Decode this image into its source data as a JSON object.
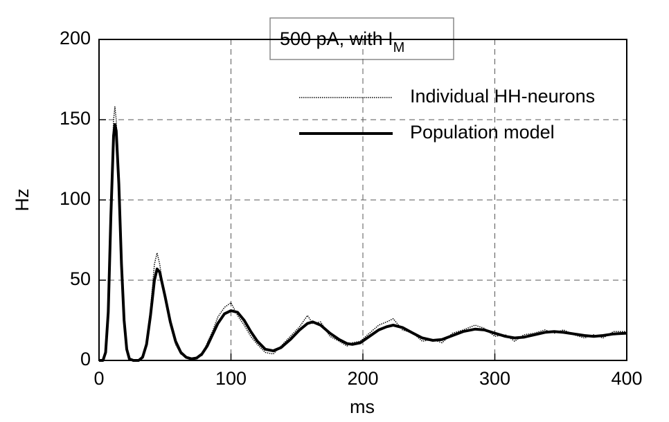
{
  "chart_data": {
    "type": "line",
    "title": {
      "text": "500 pA, with I",
      "subscript": "M"
    },
    "xlabel": "ms",
    "ylabel": "Hz",
    "x": [
      0,
      3,
      5,
      7,
      9,
      11,
      12,
      13,
      15,
      17,
      19,
      21,
      23,
      26,
      30,
      33,
      36,
      39,
      42,
      44,
      46,
      50,
      54,
      58,
      62,
      66,
      70,
      74,
      78,
      82,
      86,
      90,
      95,
      100,
      105,
      110,
      115,
      120,
      126,
      132,
      138,
      145,
      152,
      158,
      162,
      168,
      175,
      182,
      188,
      192,
      198,
      205,
      212,
      218,
      223,
      230,
      238,
      245,
      253,
      260,
      268,
      276,
      285,
      292,
      300,
      308,
      315,
      322,
      330,
      338,
      345,
      352,
      360,
      368,
      375,
      382,
      390,
      400
    ],
    "series": [
      {
        "name": "Individual HH-neurons",
        "color": "#000000",
        "style": "dotted",
        "values": [
          0,
          0,
          6,
          35,
          100,
          150,
          158,
          150,
          112,
          58,
          22,
          5,
          1,
          0,
          0,
          3,
          12,
          32,
          60,
          67,
          60,
          38,
          22,
          10,
          4,
          2,
          1,
          2,
          3,
          11,
          18,
          27,
          33,
          36,
          28,
          22,
          15,
          10,
          5,
          4,
          9,
          15,
          21,
          28,
          23,
          24,
          15,
          12,
          9,
          11,
          12,
          17,
          22,
          24,
          26,
          19,
          17,
          12,
          13,
          11,
          17,
          19,
          22,
          20,
          15,
          16,
          12,
          16,
          17,
          19,
          17,
          19,
          16,
          14,
          16,
          14,
          18,
          18
        ]
      },
      {
        "name": "Population model",
        "color": "#000000",
        "style": "solid",
        "values": [
          0,
          0,
          5,
          30,
          90,
          140,
          147,
          143,
          110,
          60,
          25,
          7,
          1,
          0,
          0,
          2,
          10,
          28,
          50,
          57,
          55,
          40,
          24,
          12,
          5,
          2,
          1,
          1.5,
          4,
          9,
          16,
          23,
          29,
          31,
          30,
          25,
          18,
          12,
          7,
          6,
          8,
          13,
          19,
          23,
          24,
          22,
          17,
          13,
          10.5,
          10,
          11,
          15,
          19,
          21,
          22,
          20.5,
          17,
          14,
          12.5,
          13,
          15.5,
          18,
          19.5,
          19,
          17,
          15,
          14,
          14.5,
          16,
          17.5,
          18,
          17.5,
          16.5,
          15.5,
          15,
          15.5,
          16.5,
          17
        ]
      }
    ],
    "xlim": [
      0,
      400
    ],
    "xticks": [
      0,
      100,
      200,
      300,
      400
    ],
    "ylim": [
      0,
      200
    ],
    "yticks": [
      0,
      50,
      100,
      150,
      200
    ],
    "grid": true,
    "legend": "upper right"
  }
}
